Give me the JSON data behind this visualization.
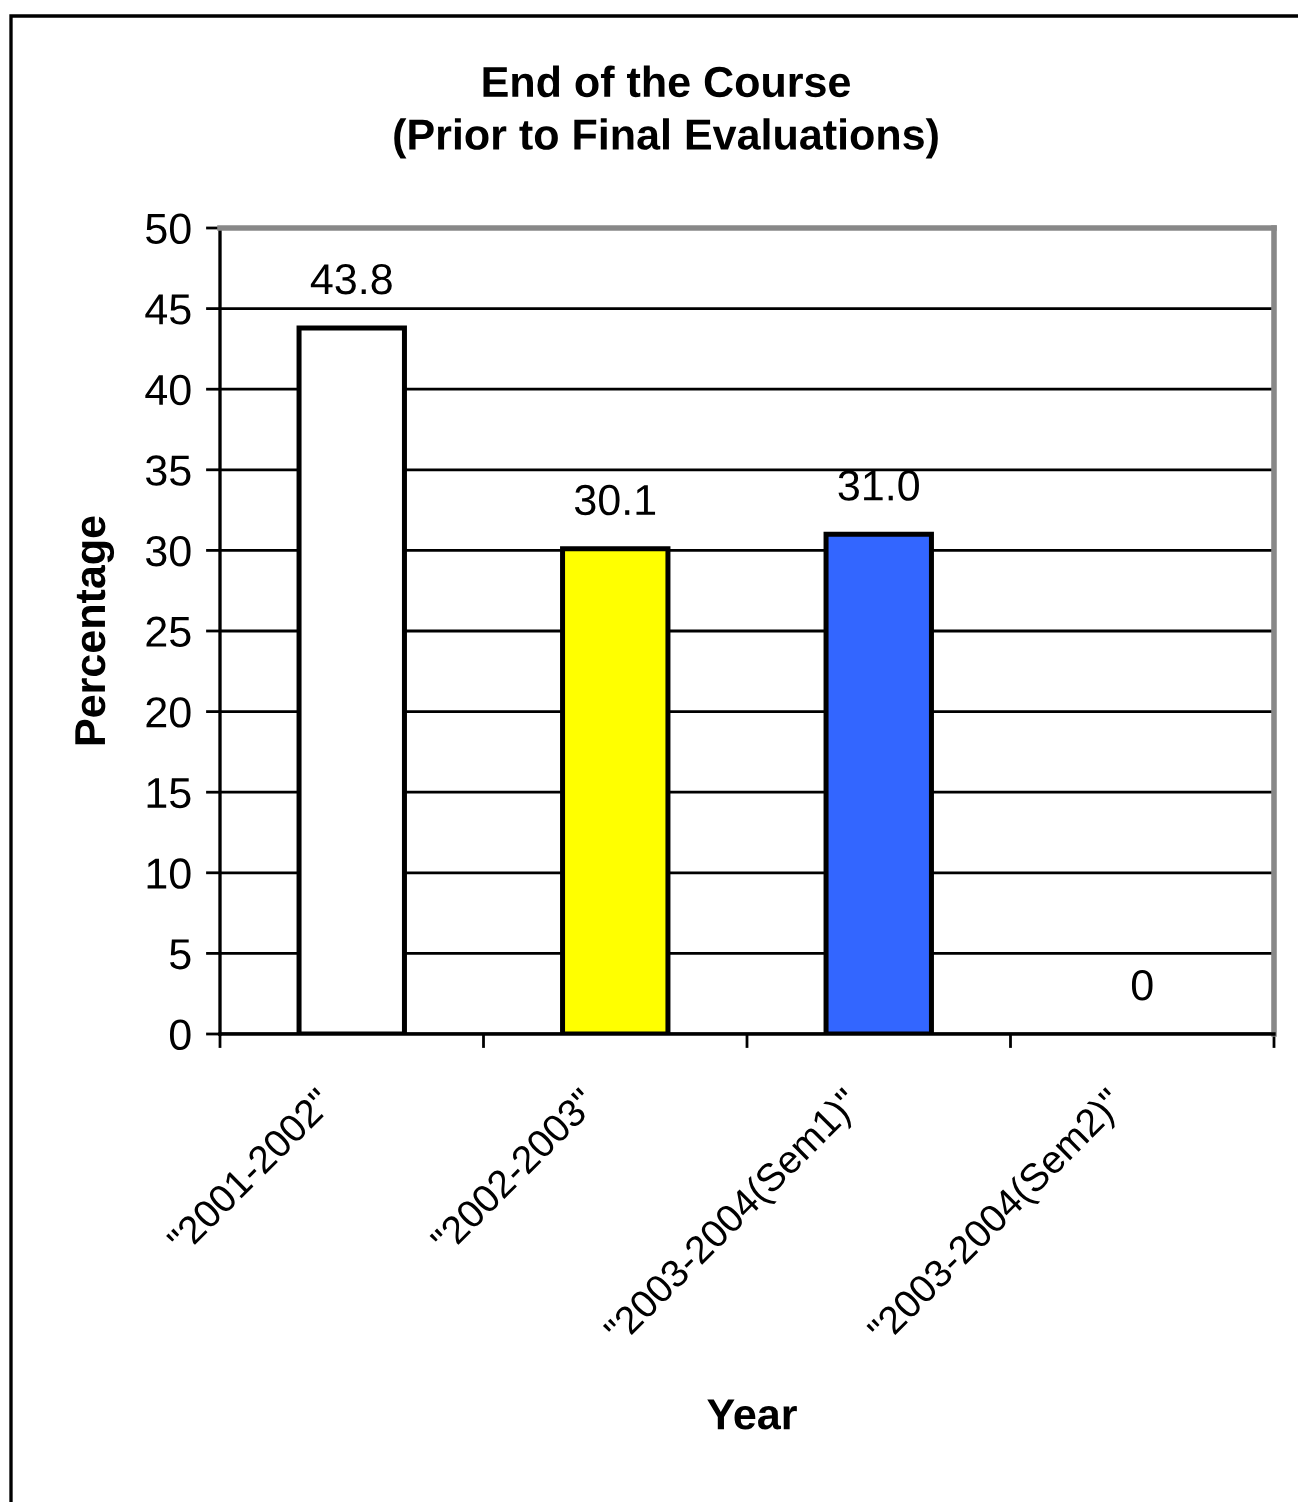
{
  "chart_data": {
    "type": "bar",
    "title": "End of the Course\n(Prior to Final Evaluations)",
    "xlabel": "Year",
    "ylabel": "Percentage",
    "categories": [
      "\"2001-2002\"",
      "\"2002-2003\"",
      "\"2003-2004(Sem1)\"",
      "\"2003-2004(Sem2)\""
    ],
    "values": [
      43.8,
      30.1,
      31.0,
      0
    ],
    "colors": [
      "#ffffff",
      "#ffff00",
      "#3366ff",
      "#ffffff"
    ],
    "value_labels": [
      "43.8",
      "30.1",
      "31.0",
      "0"
    ],
    "ylim": [
      0,
      50
    ],
    "yticks": [
      0,
      5,
      10,
      15,
      20,
      25,
      30,
      35,
      40,
      45,
      50
    ],
    "grid": "y",
    "legend": false
  }
}
